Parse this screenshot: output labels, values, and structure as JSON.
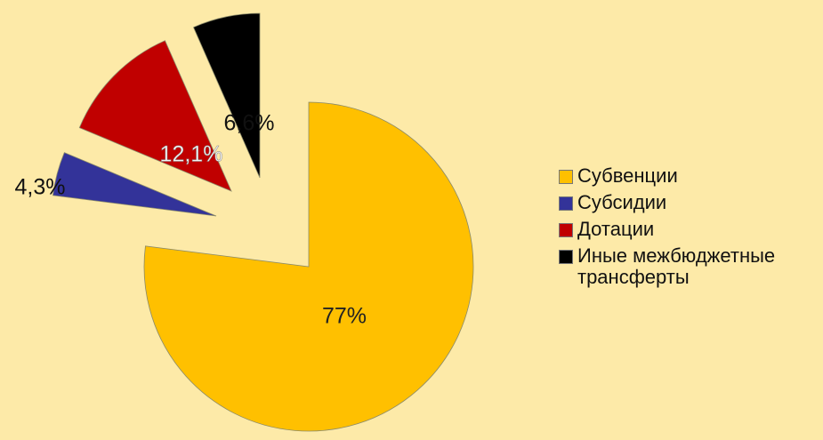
{
  "chart_data": {
    "type": "pie",
    "categories": [
      "Субвенции",
      "Субсидии",
      "Дотации",
      "Иные межбюджетные трансферты"
    ],
    "values": [
      77,
      4.3,
      12.1,
      6.6
    ],
    "value_labels": [
      "77%",
      "4,3%",
      "12,1%",
      "6,6%"
    ],
    "colors": [
      "#ffc000",
      "#333399",
      "#c00000",
      "#000000"
    ],
    "legend": "right"
  }
}
